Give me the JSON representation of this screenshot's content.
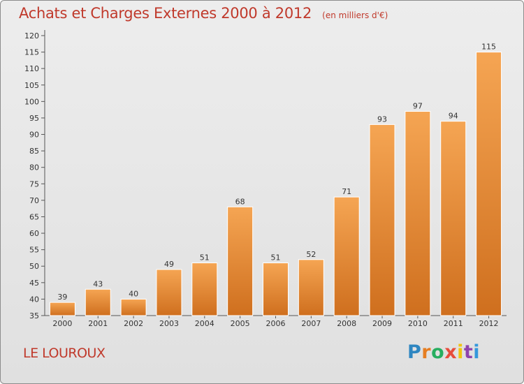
{
  "title": "Achats et Charges Externes 2000 à 2012",
  "subtitle": "(en milliers d'€)",
  "town": "LE LOUROUX",
  "brand": {
    "letters": [
      "P",
      "r",
      "o",
      "x",
      "i",
      "t",
      "i"
    ],
    "colors": [
      "#2e86c1",
      "#e67e22",
      "#27ae60",
      "#e74c3c",
      "#f1c40f",
      "#8e44ad",
      "#3498db"
    ]
  },
  "chart_data": {
    "type": "bar",
    "categories": [
      "2000",
      "2001",
      "2002",
      "2003",
      "2004",
      "2005",
      "2006",
      "2007",
      "2008",
      "2009",
      "2010",
      "2011",
      "2012"
    ],
    "values": [
      39,
      43,
      40,
      49,
      51,
      68,
      51,
      52,
      71,
      93,
      97,
      94,
      115
    ],
    "title": "Achats et Charges Externes 2000 à 2012",
    "subtitle": "(en milliers d'€)",
    "xlabel": "",
    "ylabel": "",
    "ylim": [
      35,
      120
    ],
    "yticks": [
      35,
      40,
      45,
      50,
      55,
      60,
      65,
      70,
      75,
      80,
      85,
      90,
      95,
      100,
      105,
      110,
      115,
      120
    ],
    "grid": false,
    "bar_color_light": "#f5a553",
    "bar_color_dark": "#cf6f1e",
    "data_labels": true
  }
}
